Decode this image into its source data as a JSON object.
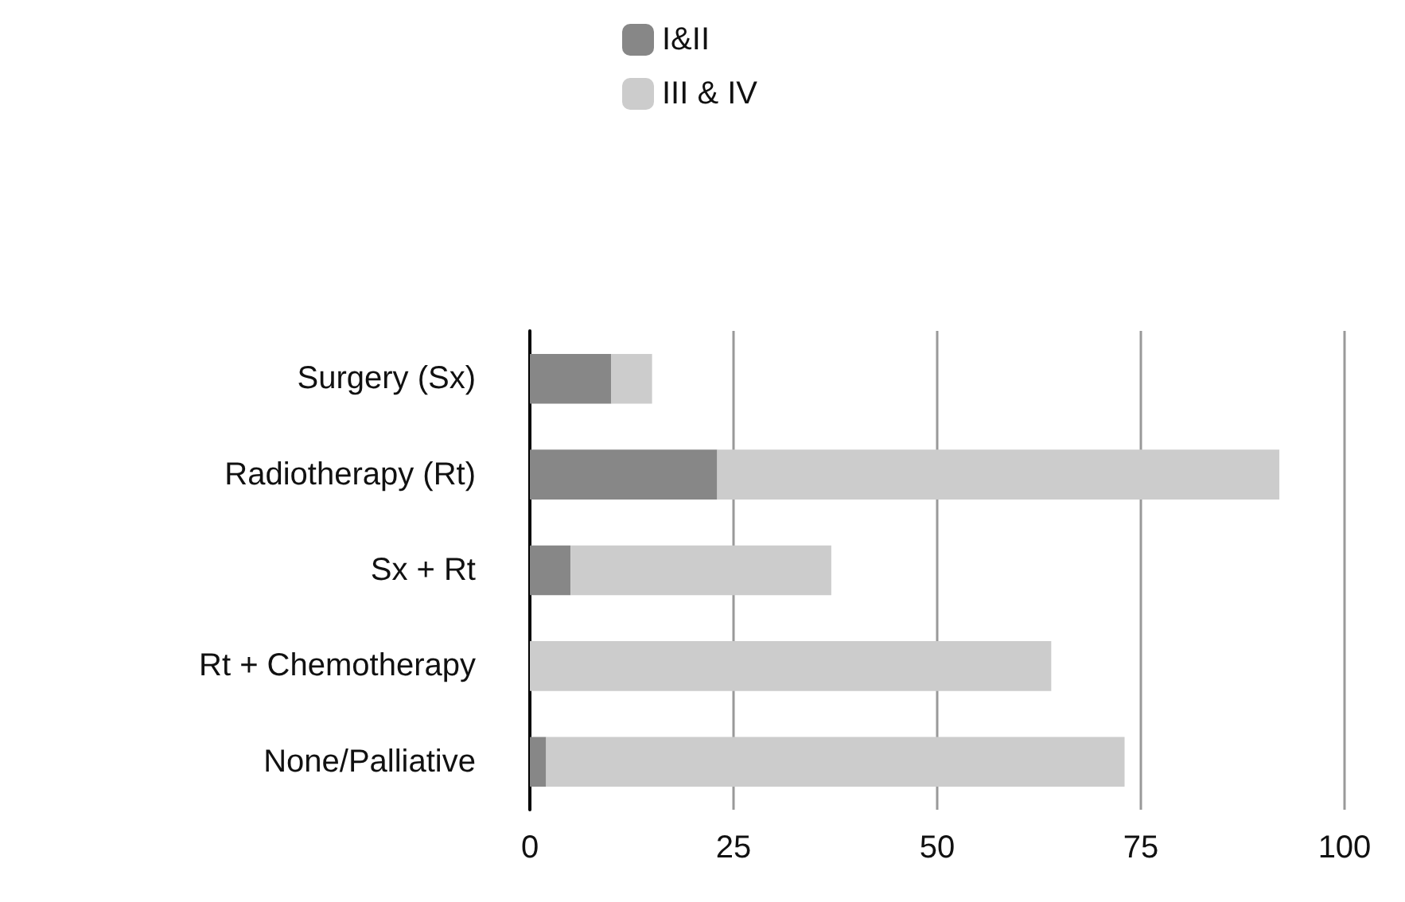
{
  "chart_data": {
    "type": "bar",
    "orientation": "horizontal",
    "stacked": true,
    "categories": [
      "Surgery (Sx)",
      "Radiotherapy (Rt)",
      "Sx + Rt",
      "Rt + Chemotherapy",
      "None/Palliative"
    ],
    "series": [
      {
        "name": "I&II",
        "color": "#878787",
        "values": [
          10,
          23,
          5,
          0,
          2
        ]
      },
      {
        "name": "III & IV",
        "color": "#cccccc",
        "values": [
          5,
          69,
          32,
          64,
          71
        ]
      }
    ],
    "xlim": [
      0,
      100
    ],
    "xticks": [
      0,
      25,
      50,
      75,
      100
    ],
    "grid": "x",
    "legend": "top"
  }
}
